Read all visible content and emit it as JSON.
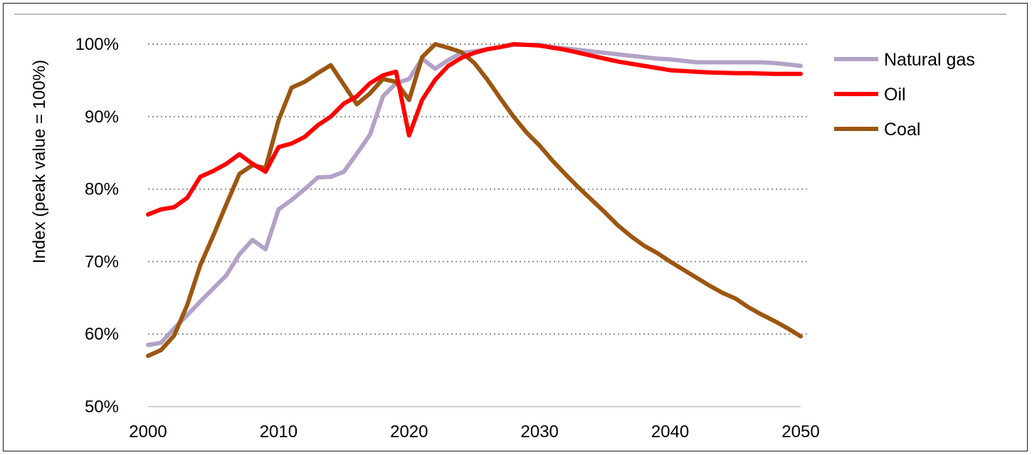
{
  "chart_data": {
    "type": "line",
    "title": "",
    "xlabel": "",
    "ylabel": "Index (peak value = 100%)",
    "xlim": [
      2000,
      2050
    ],
    "ylim": [
      50,
      100
    ],
    "x_ticks": [
      2000,
      2010,
      2020,
      2030,
      2040,
      2050
    ],
    "x_tick_labels": [
      "2000",
      "2010",
      "2020",
      "2030",
      "2040",
      "2050"
    ],
    "y_ticks": [
      50,
      60,
      70,
      80,
      90,
      100
    ],
    "y_tick_labels": [
      "50%",
      "60%",
      "70%",
      "80%",
      "90%",
      "100%"
    ],
    "grid": "horizontal dotted",
    "legend_position": "right",
    "series": [
      {
        "name": "Natural gas",
        "color": "#b3a2c7",
        "x": [
          2000,
          2001,
          2002,
          2003,
          2004,
          2005,
          2006,
          2007,
          2008,
          2009,
          2010,
          2011,
          2012,
          2013,
          2014,
          2015,
          2016,
          2017,
          2018,
          2019,
          2020,
          2021,
          2022,
          2023,
          2024,
          2025,
          2026,
          2027,
          2028,
          2029,
          2030,
          2031,
          2032,
          2033,
          2034,
          2035,
          2036,
          2037,
          2038,
          2039,
          2040,
          2041,
          2042,
          2043,
          2044,
          2045,
          2046,
          2047,
          2048,
          2049,
          2050
        ],
        "values": [
          58.5,
          58.8,
          60.8,
          62.6,
          64.5,
          66.3,
          68.1,
          71.0,
          73.0,
          71.7,
          77.2,
          78.5,
          80.0,
          81.6,
          81.7,
          82.4,
          84.9,
          87.5,
          92.8,
          94.6,
          95.2,
          98.0,
          96.6,
          97.8,
          98.8,
          99.0,
          99.3,
          99.6,
          99.9,
          99.9,
          99.9,
          99.6,
          99.4,
          99.2,
          99.0,
          98.8,
          98.6,
          98.4,
          98.2,
          98.0,
          97.9,
          97.7,
          97.5,
          97.5,
          97.5,
          97.5,
          97.5,
          97.5,
          97.4,
          97.2,
          97.0
        ]
      },
      {
        "name": "Oil",
        "color": "#ff0000",
        "x": [
          2000,
          2001,
          2002,
          2003,
          2004,
          2005,
          2006,
          2007,
          2008,
          2009,
          2010,
          2011,
          2012,
          2013,
          2014,
          2015,
          2016,
          2017,
          2018,
          2019,
          2020,
          2021,
          2022,
          2023,
          2024,
          2025,
          2026,
          2027,
          2028,
          2029,
          2030,
          2031,
          2032,
          2033,
          2034,
          2035,
          2036,
          2037,
          2038,
          2039,
          2040,
          2041,
          2042,
          2043,
          2044,
          2045,
          2046,
          2047,
          2048,
          2049,
          2050
        ],
        "values": [
          76.5,
          77.2,
          77.5,
          78.8,
          81.7,
          82.5,
          83.5,
          84.8,
          83.5,
          82.4,
          85.8,
          86.3,
          87.2,
          88.8,
          90.0,
          91.8,
          92.8,
          94.6,
          95.7,
          96.2,
          87.4,
          92.3,
          95.1,
          97.0,
          98.1,
          98.8,
          99.3,
          99.6,
          100.0,
          99.9,
          99.8,
          99.5,
          99.2,
          98.8,
          98.4,
          98.0,
          97.6,
          97.3,
          97.0,
          96.7,
          96.4,
          96.3,
          96.2,
          96.1,
          96.05,
          96.0,
          96.0,
          95.95,
          95.9,
          95.9,
          95.9
        ]
      },
      {
        "name": "Coal",
        "color": "#9c5611",
        "x": [
          2000,
          2001,
          2002,
          2003,
          2004,
          2005,
          2006,
          2007,
          2008,
          2009,
          2010,
          2011,
          2012,
          2013,
          2014,
          2015,
          2016,
          2017,
          2018,
          2019,
          2020,
          2021,
          2022,
          2023,
          2024,
          2025,
          2026,
          2027,
          2028,
          2029,
          2030,
          2031,
          2032,
          2033,
          2034,
          2035,
          2036,
          2037,
          2038,
          2039,
          2040,
          2041,
          2042,
          2043,
          2044,
          2045,
          2046,
          2047,
          2048,
          2049,
          2050
        ],
        "values": [
          57.0,
          57.8,
          59.8,
          64.0,
          69.5,
          73.6,
          77.9,
          82.1,
          83.3,
          82.9,
          89.5,
          94.0,
          94.8,
          96.0,
          97.1,
          94.4,
          91.7,
          93.2,
          95.2,
          94.8,
          92.3,
          98.2,
          100.0,
          99.5,
          98.9,
          97.4,
          95.1,
          92.5,
          90.0,
          87.8,
          86.0,
          83.9,
          82.0,
          80.2,
          78.5,
          76.8,
          75.0,
          73.5,
          72.2,
          71.2,
          70.0,
          68.9,
          67.8,
          66.7,
          65.7,
          64.9,
          63.7,
          62.7,
          61.8,
          60.8,
          59.7
        ]
      }
    ]
  }
}
